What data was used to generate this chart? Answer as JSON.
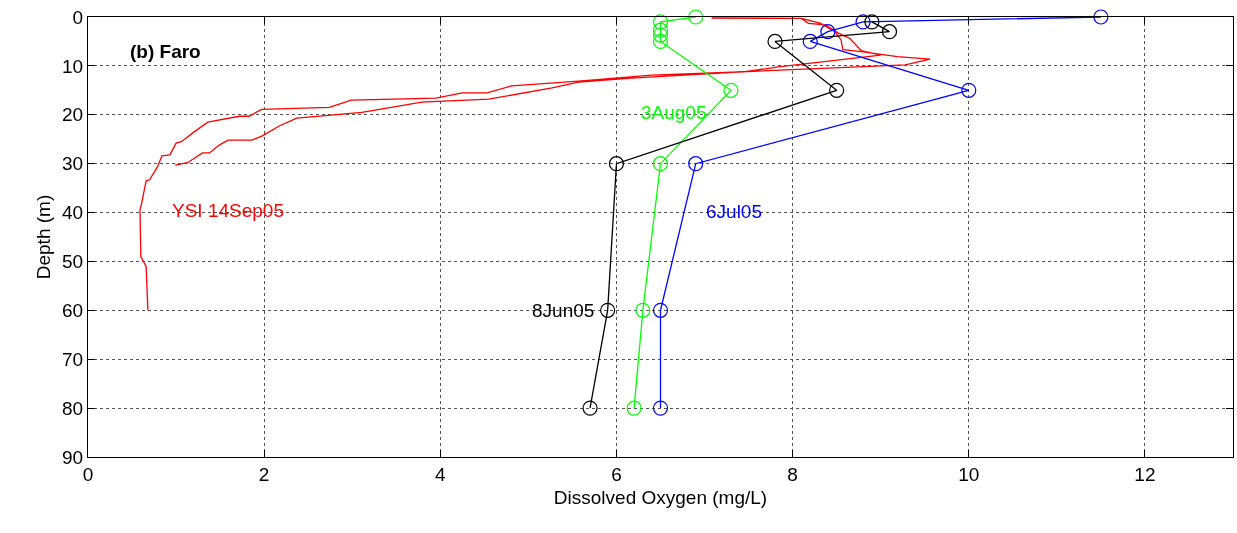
{
  "chart_data": {
    "type": "line",
    "title": "(b) Faro",
    "xlabel": "Dissolved Oxygen (mg/L)",
    "ylabel": "Depth (m)",
    "xlim": [
      0,
      13
    ],
    "xticks": [
      0,
      2,
      4,
      6,
      8,
      10,
      12
    ],
    "ylim": [
      90,
      0
    ],
    "yticks": [
      0,
      10,
      20,
      30,
      40,
      50,
      60,
      70,
      80,
      90
    ],
    "grid": true,
    "legend": false,
    "series": [
      {
        "name": "YSI 14Sep05",
        "color": "#ff0000",
        "marker": "none",
        "x": [
          0.99,
          1.13,
          1.3,
          1.38,
          1.49,
          1.59,
          1.86,
          1.98,
          2.17,
          2.37,
          3.11,
          3.79,
          4.55,
          5.27,
          5.57,
          6.17,
          7.42,
          9.28,
          9.56,
          9.19,
          8.78,
          8.57,
          8.55,
          8.48,
          8.32,
          8.1,
          7.08,
          8.1,
          8.18,
          8.37,
          8.52,
          8.65,
          8.78,
          9.0,
          7.84,
          7.46,
          6.4,
          5.57,
          4.81,
          4.53,
          4.25,
          3.95,
          2.99,
          2.74,
          1.97,
          1.83,
          1.72,
          1.36,
          1.19,
          1.06,
          1.0,
          0.93,
          0.84,
          0.79,
          0.7,
          0.66,
          0.61,
          0.59,
          0.6,
          0.66,
          0.68
        ],
        "values": [
          30.3,
          29.8,
          27.8,
          27.8,
          26.2,
          25.2,
          25.2,
          24.3,
          22.3,
          20.7,
          19.5,
          17.4,
          16.8,
          14.5,
          13.3,
          12.5,
          11.2,
          9.8,
          8.6,
          8.1,
          7.1,
          6.7,
          4.7,
          3,
          1.3,
          0.3,
          0.2,
          0.3,
          1.3,
          1.6,
          3.3,
          4.4,
          6.9,
          7.8,
          10.2,
          11.2,
          11.9,
          13.1,
          14.1,
          15.5,
          15.5,
          16.6,
          17,
          18.5,
          18.9,
          20.3,
          20.3,
          21.5,
          23.7,
          25.5,
          25.8,
          28.2,
          28.4,
          30.6,
          33.3,
          33.5,
          38,
          39.5,
          49,
          51,
          60
        ]
      },
      {
        "name": "3Aug05",
        "color": "#00ff00",
        "marker": "circle",
        "x": [
          6.9,
          6.5,
          6.5,
          6.5,
          6.5,
          7.3,
          6.5,
          6.3,
          6.2
        ],
        "values": [
          0,
          1,
          2.7,
          3.7,
          5,
          15,
          30,
          60,
          80
        ]
      },
      {
        "name": "6Jul05",
        "color": "#0000ff",
        "marker": "circle",
        "x": [
          11.5,
          8.8,
          8.4,
          8.2,
          10.0,
          6.9,
          6.5,
          6.5
        ],
        "values": [
          0,
          1,
          3,
          5,
          15,
          30,
          60,
          80
        ]
      },
      {
        "name": "8Jun05",
        "color": "#000000",
        "marker": "circle",
        "x": [
          8.9,
          9.1,
          7.8,
          8.5,
          6.0,
          5.9,
          5.7
        ],
        "values": [
          1,
          3,
          5,
          15,
          30,
          60,
          80
        ]
      }
    ]
  }
}
